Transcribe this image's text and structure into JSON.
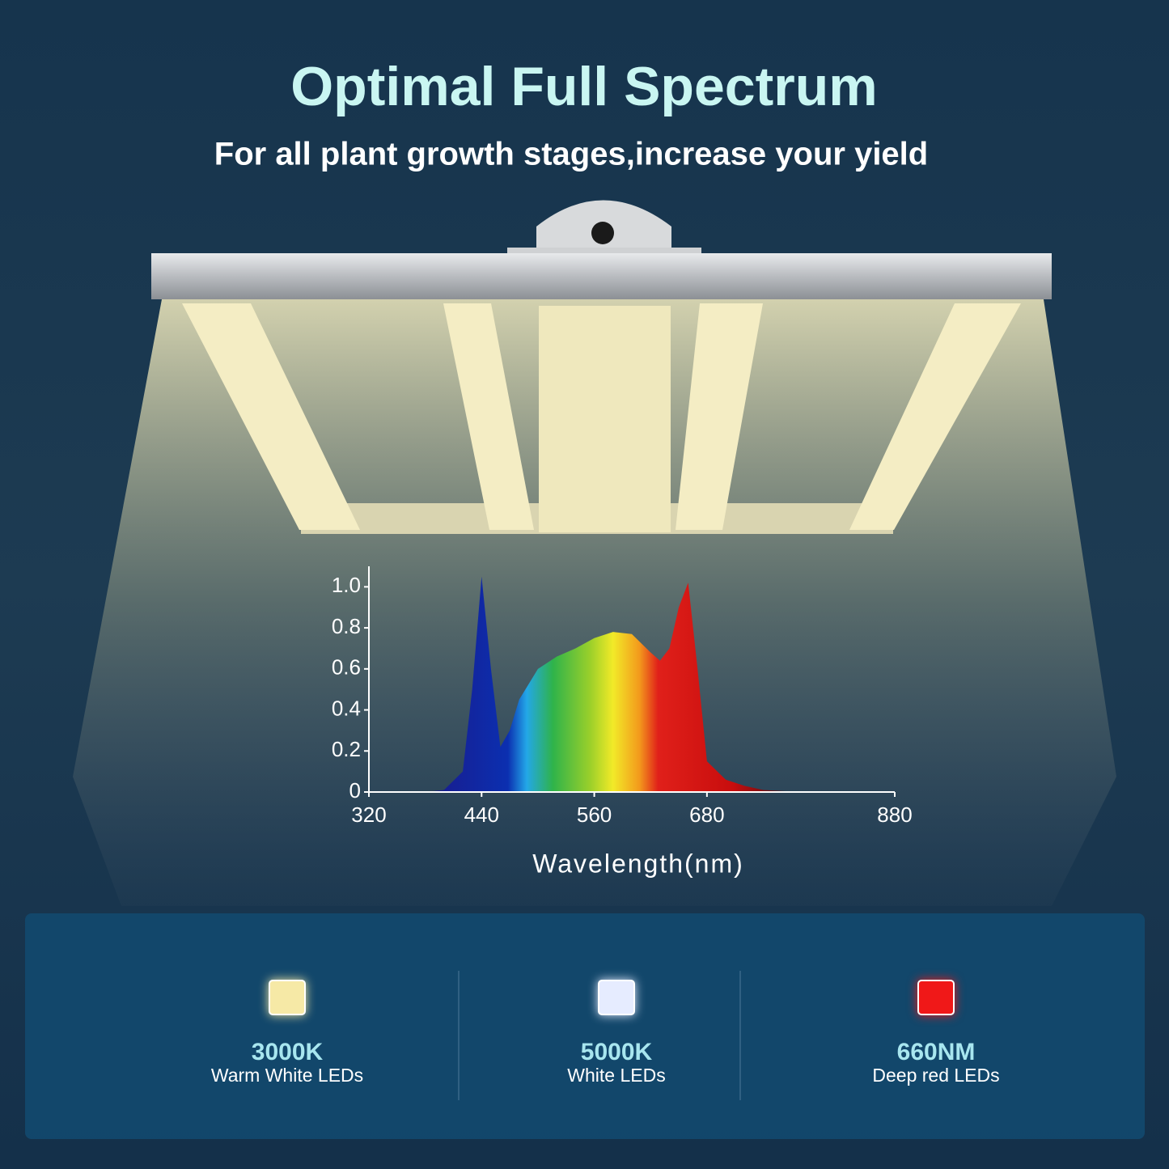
{
  "title": "Optimal Full Spectrum",
  "subtitle": "For all plant growth stages,increase your yield",
  "chart_data": {
    "type": "area",
    "xlabel": "Wavelength(nm)",
    "x": [
      380,
      400,
      420,
      430,
      440,
      450,
      460,
      470,
      480,
      500,
      520,
      540,
      560,
      580,
      600,
      620,
      630,
      640,
      650,
      660,
      670,
      680,
      700,
      720,
      740,
      780
    ],
    "values": [
      0,
      0.01,
      0.1,
      0.5,
      1.05,
      0.6,
      0.22,
      0.3,
      0.45,
      0.6,
      0.66,
      0.7,
      0.75,
      0.78,
      0.77,
      0.68,
      0.64,
      0.7,
      0.9,
      1.02,
      0.6,
      0.15,
      0.06,
      0.03,
      0.01,
      0
    ],
    "xlim": [
      320,
      880
    ],
    "xticks": [
      320,
      440,
      560,
      680,
      880
    ],
    "ylim": [
      0,
      1.1
    ],
    "yticks": [
      0,
      0.2,
      0.4,
      0.6,
      0.8,
      {
        "value": 1,
        "label": "1.0"
      }
    ]
  },
  "leds": [
    {
      "name": "3000K",
      "label": "Warm White LEDs",
      "color": "#f6e9a6"
    },
    {
      "name": "5000K",
      "label": "White LEDs",
      "color": "#e6ecff"
    },
    {
      "name": "660NM",
      "label": "Deep red LEDs",
      "color": "#f01818"
    }
  ]
}
